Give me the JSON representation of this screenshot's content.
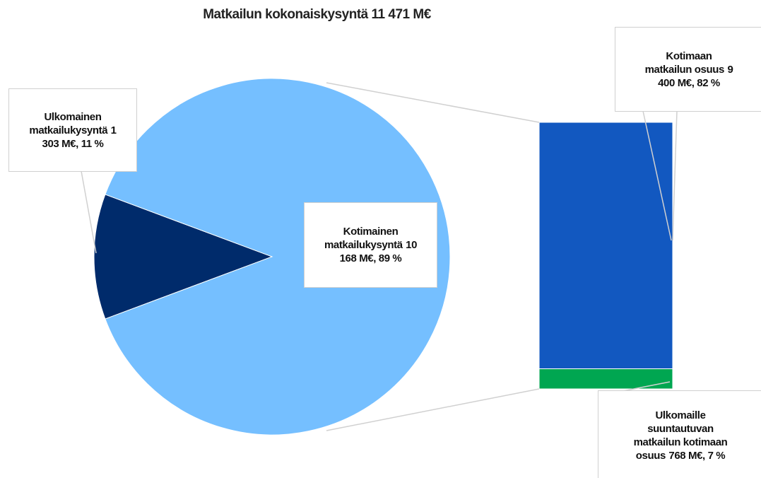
{
  "chart_data": {
    "type": "pie-of-bar",
    "title": "Matkailun kokonaiskysyntä 11 471 M€",
    "categories": [
      "Ulkomainen matkailukysyntä",
      "Kotimainen matkailukysyntä"
    ],
    "values": [
      1303,
      10168
    ],
    "value_labels": [
      "1 303 M€, 11 %",
      "10 168 M€, 89 %"
    ],
    "colors": [
      "#002b6b",
      "#75bfff"
    ],
    "bar": {
      "categories": [
        "Kotimaan matkailun osuus",
        "Ulkomaille suuntautuvan matkailun kotimaan osuus"
      ],
      "values": [
        9400,
        768
      ],
      "value_labels": [
        "9 400 M€, 82 %",
        "768 M€, 7 %"
      ],
      "colors": [
        "#1258c0",
        "#00a651"
      ]
    }
  }
}
